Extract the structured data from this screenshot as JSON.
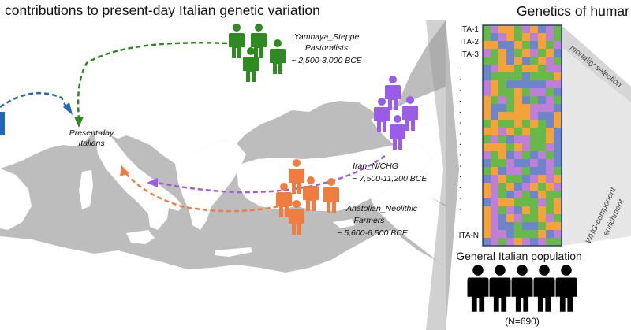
{
  "header": {
    "title_left": "contributions to present-day Italian genetic variation",
    "title_right": "Genetics of humar"
  },
  "map": {
    "present_day_line1": "Present-day",
    "present_day_line2": "Italians",
    "yamnaya_line1": "Yamnaya_Steppe",
    "yamnaya_line2": "Pastoralists",
    "yamnaya_date": "~ 2,500-3,000 BCE",
    "iran_line1": "Iran_N/CHG",
    "iran_date": "~ 7,500-11,200 BCE",
    "anatolian_line1": "Anatolian_Neolithic",
    "anatolian_line2": "Farmers",
    "anatolian_date": "~ 5,600-6,500 BCE",
    "colors": {
      "sea": "#bfbfbf",
      "land": "#ffffff",
      "steppe": "#2f8a22",
      "iran": "#9a5de8",
      "anatolian": "#ef7d3f",
      "whg": "#2166b8"
    }
  },
  "grid": {
    "row_labels": [
      "ITA-1",
      "ITA-2",
      "ITA-3",
      ".",
      ".",
      ".",
      ".",
      ".",
      ".",
      ".",
      ".",
      ".",
      ".",
      ".",
      ".",
      ".",
      ".",
      "ITA-N"
    ],
    "side_label_top": "mortality selection",
    "side_label_bottom_1": "WHG-component",
    "side_label_bottom_2": "enrichment",
    "palette": [
      "#f3a33a",
      "#69b84a",
      "#c07fd6",
      "#6d86c9"
    ],
    "border_color": "#2b3f7a"
  },
  "population": {
    "label": "General Italian population",
    "n_label": "(N=690)"
  }
}
